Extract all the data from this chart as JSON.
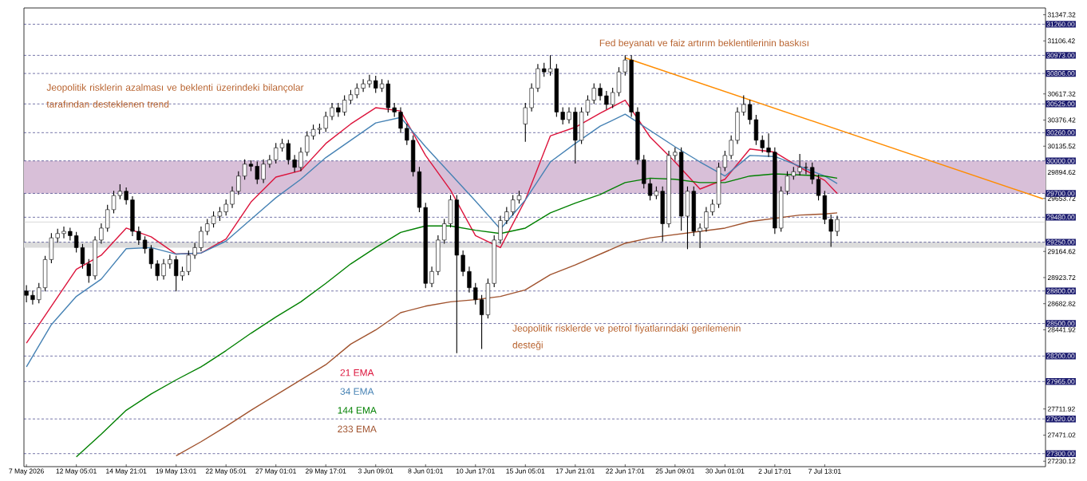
{
  "chart_data": {
    "type": "candlestick",
    "categories": [
      "7 May 2026",
      null,
      null,
      null,
      null,
      null,
      null,
      null,
      "12 May 05:01",
      null,
      null,
      null,
      null,
      null,
      null,
      null,
      "14 May 21:01",
      null,
      null,
      null,
      null,
      null,
      null,
      null,
      "19 May 13:01",
      null,
      null,
      null,
      null,
      null,
      null,
      null,
      "22 May 05:01",
      null,
      null,
      null,
      null,
      null,
      null,
      null,
      "27 May 01:01",
      null,
      null,
      null,
      null,
      null,
      null,
      null,
      "29 May 17:01",
      null,
      null,
      null,
      null,
      null,
      null,
      null,
      "3 Jun 09:01",
      null,
      null,
      null,
      null,
      null,
      null,
      null,
      "8 Jun 01:01",
      null,
      null,
      null,
      null,
      null,
      null,
      null,
      "10 Jun 17:01",
      null,
      null,
      null,
      null,
      null,
      null,
      null,
      "15 Jun 05:01",
      null,
      null,
      null,
      null,
      null,
      null,
      null,
      "17 Jun 21:01",
      null,
      null,
      null,
      null,
      null,
      null,
      null,
      "22 Jun 17:01",
      null,
      null,
      null,
      null,
      null,
      null,
      null,
      "25 Jun 09:01",
      null,
      null,
      null,
      null,
      null,
      null,
      null,
      "30 Jun 01:01",
      null,
      null,
      null,
      null,
      null,
      null,
      null,
      "2 Jul 17:01",
      null,
      null,
      null,
      null,
      null,
      null,
      null,
      "7 Jul 13:01",
      null,
      null,
      null,
      null,
      null,
      null,
      null,
      null,
      null,
      null,
      null,
      null,
      null,
      null,
      null,
      null,
      null,
      null,
      null,
      null,
      null,
      null,
      null,
      null,
      null,
      null,
      null,
      null,
      null,
      null,
      null,
      null,
      null,
      null,
      null
    ],
    "ohlc": [
      [
        28800,
        28850,
        28700,
        28760
      ],
      [
        28760,
        28800,
        28680,
        28720
      ],
      [
        28720,
        28870,
        28690,
        28830
      ],
      [
        28830,
        29120,
        28800,
        29090
      ],
      [
        29090,
        29330,
        29060,
        29290
      ],
      [
        29290,
        29370,
        29250,
        29330
      ],
      [
        29330,
        29390,
        29290,
        29350
      ],
      [
        29350,
        29380,
        29270,
        29310
      ],
      [
        29310,
        29340,
        29160,
        29200
      ],
      [
        29200,
        29230,
        29010,
        29050
      ],
      [
        29050,
        29090,
        28880,
        28940
      ],
      [
        28940,
        29300,
        28910,
        29270
      ],
      [
        29270,
        29420,
        29240,
        29380
      ],
      [
        29380,
        29590,
        29350,
        29550
      ],
      [
        29550,
        29720,
        29520,
        29680
      ],
      [
        29680,
        29780,
        29650,
        29720
      ],
      [
        29720,
        29750,
        29600,
        29640
      ],
      [
        29640,
        29670,
        29310,
        29350
      ],
      [
        29350,
        29390,
        29230,
        29270
      ],
      [
        29270,
        29300,
        29150,
        29190
      ],
      [
        29190,
        29220,
        29010,
        29050
      ],
      [
        29050,
        29080,
        28900,
        28940
      ],
      [
        28940,
        29090,
        28910,
        29050
      ],
      [
        29050,
        29130,
        29010,
        29090
      ],
      [
        29090,
        29120,
        28800,
        28940
      ],
      [
        28940,
        29020,
        28900,
        28980
      ],
      [
        28980,
        29170,
        28950,
        29130
      ],
      [
        29130,
        29240,
        29100,
        29200
      ],
      [
        29200,
        29390,
        29170,
        29350
      ],
      [
        29350,
        29460,
        29320,
        29420
      ],
      [
        29420,
        29530,
        29390,
        29490
      ],
      [
        29490,
        29570,
        29450,
        29530
      ],
      [
        29530,
        29640,
        29500,
        29600
      ],
      [
        29600,
        29760,
        29570,
        29720
      ],
      [
        29720,
        29900,
        29690,
        29860
      ],
      [
        29860,
        30010,
        29830,
        29970
      ],
      [
        29970,
        30000,
        29910,
        29950
      ],
      [
        29950,
        29990,
        29790,
        29830
      ],
      [
        29830,
        30010,
        29800,
        29970
      ],
      [
        29970,
        30050,
        29940,
        30010
      ],
      [
        30010,
        30160,
        29980,
        30120
      ],
      [
        30120,
        30200,
        30090,
        30160
      ],
      [
        30160,
        30190,
        29970,
        30010
      ],
      [
        30010,
        30050,
        29900,
        29940
      ],
      [
        29940,
        30120,
        29910,
        30080
      ],
      [
        30080,
        30270,
        30050,
        30230
      ],
      [
        30230,
        30330,
        30200,
        30290
      ],
      [
        30290,
        30340,
        30250,
        30300
      ],
      [
        30300,
        30450,
        30270,
        30410
      ],
      [
        30410,
        30530,
        30380,
        30490
      ],
      [
        30490,
        30530,
        30410,
        30450
      ],
      [
        30450,
        30600,
        30420,
        30560
      ],
      [
        30560,
        30650,
        30530,
        30610
      ],
      [
        30610,
        30710,
        30580,
        30670
      ],
      [
        30670,
        30750,
        30640,
        30710
      ],
      [
        30710,
        30790,
        30680,
        30740
      ],
      [
        30740,
        30780,
        30630,
        30670
      ],
      [
        30670,
        30750,
        30640,
        30710
      ],
      [
        30710,
        30740,
        30450,
        30490
      ],
      [
        30490,
        30530,
        30410,
        30450
      ],
      [
        30450,
        30490,
        30260,
        30300
      ],
      [
        30300,
        30340,
        30150,
        30190
      ],
      [
        30190,
        30230,
        29860,
        29900
      ],
      [
        29900,
        29940,
        29530,
        29570
      ],
      [
        29570,
        29610,
        28830,
        28870
      ],
      [
        28870,
        29020,
        28840,
        28980
      ],
      [
        28980,
        29310,
        28950,
        29270
      ],
      [
        29270,
        29460,
        29240,
        29420
      ],
      [
        29420,
        29680,
        29390,
        29640
      ],
      [
        29640,
        29680,
        28230,
        29130
      ],
      [
        29130,
        29170,
        28940,
        28980
      ],
      [
        28980,
        29020,
        28790,
        28830
      ],
      [
        28830,
        28870,
        28680,
        28720
      ],
      [
        28720,
        28760,
        28270,
        28580
      ],
      [
        28580,
        28910,
        28550,
        28870
      ],
      [
        28870,
        29310,
        28840,
        29270
      ],
      [
        29270,
        29490,
        29240,
        29450
      ],
      [
        29450,
        29570,
        29420,
        29530
      ],
      [
        29530,
        29680,
        29500,
        29640
      ],
      [
        29640,
        29720,
        29610,
        29680
      ],
      [
        30340,
        30530,
        30180,
        30490
      ],
      [
        30490,
        30710,
        30460,
        30670
      ],
      [
        30670,
        30890,
        30640,
        30850
      ],
      [
        30850,
        30900,
        30780,
        30820
      ],
      [
        30820,
        30970,
        30790,
        30850
      ],
      [
        30850,
        30890,
        30410,
        30450
      ],
      [
        30450,
        30490,
        30340,
        30380
      ],
      [
        30380,
        30490,
        30350,
        30450
      ],
      [
        30450,
        30490,
        29980,
        30190
      ],
      [
        30190,
        30490,
        30160,
        30450
      ],
      [
        30450,
        30600,
        30420,
        30560
      ],
      [
        30560,
        30710,
        30530,
        30670
      ],
      [
        30670,
        30710,
        30560,
        30600
      ],
      [
        30600,
        30640,
        30480,
        30520
      ],
      [
        30520,
        30670,
        30490,
        30630
      ],
      [
        30630,
        30860,
        30600,
        30820
      ],
      [
        30820,
        30970,
        30790,
        30930
      ],
      [
        30930,
        30970,
        30410,
        30450
      ],
      [
        30450,
        30490,
        29970,
        30010
      ],
      [
        30010,
        30050,
        29750,
        29790
      ],
      [
        29790,
        29830,
        29640,
        29680
      ],
      [
        29680,
        29760,
        29650,
        29720
      ],
      [
        29720,
        29760,
        29260,
        29420
      ],
      [
        29420,
        30090,
        29390,
        30050
      ],
      [
        30050,
        30120,
        30010,
        30080
      ],
      [
        30080,
        30120,
        29360,
        29490
      ],
      [
        29490,
        29760,
        29190,
        29720
      ],
      [
        29720,
        29760,
        29310,
        29350
      ],
      [
        29350,
        29420,
        29200,
        29380
      ],
      [
        29380,
        29570,
        29350,
        29530
      ],
      [
        29530,
        29640,
        29500,
        29600
      ],
      [
        29600,
        29980,
        29570,
        29940
      ],
      [
        29940,
        30090,
        29910,
        30050
      ],
      [
        30050,
        30230,
        30020,
        30190
      ],
      [
        30190,
        30490,
        30160,
        30450
      ],
      [
        30450,
        30600,
        30420,
        30520
      ],
      [
        30520,
        30560,
        30340,
        30380
      ],
      [
        30380,
        30420,
        30150,
        30190
      ],
      [
        30190,
        30230,
        30080,
        30120
      ],
      [
        30120,
        30250,
        30040,
        30080
      ],
      [
        30080,
        30120,
        29330,
        29380
      ],
      [
        29380,
        29760,
        29350,
        29720
      ],
      [
        29720,
        29900,
        29690,
        29860
      ],
      [
        29860,
        29940,
        29830,
        29900
      ],
      [
        29900,
        30060,
        29870,
        29940
      ],
      [
        29940,
        29980,
        29880,
        29940
      ],
      [
        29940,
        29980,
        29790,
        29830
      ],
      [
        29830,
        29870,
        29640,
        29680
      ],
      [
        29680,
        29720,
        29420,
        29460
      ],
      [
        29460,
        29500,
        29210,
        29350
      ],
      [
        29350,
        29490,
        29310,
        29460
      ],
      null,
      null,
      null,
      null,
      null,
      null,
      null,
      null,
      null,
      null,
      null,
      null,
      null,
      null,
      null,
      null,
      null,
      null,
      null,
      null,
      null,
      null,
      null,
      null,
      null,
      null,
      null,
      null,
      null,
      null,
      null,
      null,
      null
    ],
    "series": [
      {
        "type": "line",
        "name": "21 EMA",
        "color": "#dc143c",
        "values": [
          28320,
          null,
          null,
          null,
          28660,
          null,
          null,
          null,
          29000,
          null,
          null,
          null,
          29130,
          null,
          null,
          null,
          29380,
          null,
          null,
          null,
          29300,
          null,
          null,
          null,
          29140,
          null,
          null,
          null,
          29150,
          null,
          null,
          null,
          29280,
          null,
          null,
          null,
          29620,
          null,
          null,
          null,
          29850,
          null,
          null,
          null,
          29910,
          null,
          null,
          null,
          30160,
          null,
          null,
          null,
          30340,
          null,
          null,
          null,
          30490,
          null,
          null,
          null,
          30460,
          null,
          null,
          null,
          30050,
          null,
          null,
          null,
          29730,
          null,
          null,
          null,
          29310,
          null,
          null,
          null,
          29200,
          null,
          null,
          null,
          29640,
          null,
          null,
          null,
          30230,
          null,
          null,
          null,
          30310,
          null,
          null,
          null,
          30440,
          null,
          null,
          null,
          30560,
          null,
          null,
          null,
          30220,
          null,
          null,
          null,
          29990,
          null,
          null,
          null,
          29740,
          null,
          null,
          null,
          29830,
          null,
          null,
          null,
          30110,
          null,
          null,
          null,
          30080,
          null,
          null,
          null,
          29940,
          null,
          null,
          null,
          29820,
          null,
          29700,
          null,
          null,
          null,
          null,
          null,
          null,
          null,
          null,
          null,
          null,
          null,
          null,
          null,
          null,
          null,
          null,
          null,
          null,
          null,
          null,
          null,
          null,
          null,
          null,
          null,
          null,
          null,
          null,
          null,
          null,
          null,
          null,
          null
        ]
      },
      {
        "type": "line",
        "name": "34 EMA",
        "color": "#4682b4",
        "values": [
          28100,
          null,
          null,
          null,
          28490,
          null,
          null,
          null,
          28750,
          null,
          null,
          null,
          28910,
          null,
          null,
          null,
          29190,
          null,
          null,
          null,
          29200,
          null,
          null,
          null,
          29140,
          null,
          null,
          null,
          29150,
          null,
          null,
          null,
          29260,
          null,
          null,
          null,
          29460,
          null,
          null,
          null,
          29660,
          null,
          null,
          null,
          29830,
          null,
          null,
          null,
          30030,
          null,
          null,
          null,
          30190,
          null,
          null,
          null,
          30350,
          null,
          null,
          null,
          30400,
          null,
          null,
          null,
          30130,
          null,
          null,
          null,
          29880,
          null,
          null,
          null,
          29630,
          null,
          null,
          null,
          29370,
          null,
          null,
          null,
          29640,
          null,
          null,
          null,
          29990,
          null,
          null,
          null,
          30160,
          null,
          null,
          null,
          30320,
          null,
          null,
          null,
          30430,
          null,
          null,
          null,
          30280,
          null,
          null,
          null,
          30130,
          null,
          null,
          null,
          29990,
          null,
          null,
          null,
          29860,
          null,
          null,
          null,
          30050,
          null,
          null,
          null,
          30040,
          null,
          null,
          null,
          29950,
          null,
          null,
          null,
          29860,
          null,
          29790,
          null,
          null,
          null,
          null,
          null,
          null,
          null,
          null,
          null,
          null,
          null,
          null,
          null,
          null,
          null,
          null,
          null,
          null,
          null,
          null,
          null,
          null,
          null,
          null,
          null,
          null,
          null,
          null,
          null,
          null,
          null,
          null,
          null
        ]
      },
      {
        "type": "line",
        "name": "144 EMA",
        "color": "#008000",
        "values": [
          null,
          null,
          null,
          null,
          null,
          null,
          null,
          null,
          27270,
          null,
          null,
          null,
          27480,
          null,
          null,
          null,
          27700,
          null,
          null,
          null,
          27850,
          null,
          null,
          null,
          27980,
          null,
          null,
          null,
          28100,
          null,
          null,
          null,
          28250,
          null,
          null,
          null,
          28410,
          null,
          null,
          null,
          28560,
          null,
          null,
          null,
          28700,
          null,
          null,
          null,
          28870,
          null,
          null,
          null,
          29050,
          null,
          null,
          null,
          29200,
          null,
          null,
          null,
          29340,
          null,
          null,
          null,
          29400,
          null,
          null,
          null,
          29400,
          null,
          null,
          null,
          29360,
          null,
          null,
          null,
          29330,
          null,
          null,
          null,
          29380,
          null,
          null,
          null,
          29520,
          null,
          null,
          null,
          29610,
          null,
          null,
          null,
          29690,
          null,
          null,
          null,
          29800,
          null,
          null,
          null,
          29840,
          null,
          null,
          null,
          29830,
          null,
          null,
          null,
          29800,
          null,
          null,
          null,
          29800,
          null,
          null,
          null,
          29860,
          null,
          null,
          null,
          29880,
          null,
          null,
          null,
          29870,
          null,
          null,
          null,
          29860,
          null,
          29840,
          null,
          null,
          null,
          null,
          null,
          null,
          null,
          null,
          null,
          null,
          null,
          null,
          null,
          null,
          null,
          null,
          null,
          null,
          null,
          null,
          null,
          null,
          null,
          null,
          null,
          null,
          null,
          null,
          null,
          null,
          null,
          null,
          null
        ]
      },
      {
        "type": "line",
        "name": "233 EMA",
        "color": "#a0522d",
        "values": [
          null,
          null,
          null,
          null,
          null,
          null,
          null,
          null,
          null,
          null,
          null,
          null,
          null,
          null,
          null,
          null,
          null,
          null,
          null,
          null,
          null,
          null,
          null,
          null,
          27280,
          null,
          null,
          null,
          27410,
          null,
          null,
          null,
          27550,
          null,
          null,
          null,
          27700,
          null,
          null,
          null,
          27840,
          null,
          null,
          null,
          27980,
          null,
          null,
          null,
          28120,
          null,
          null,
          null,
          28310,
          null,
          null,
          null,
          28440,
          null,
          null,
          null,
          28600,
          null,
          null,
          null,
          28660,
          null,
          null,
          null,
          28700,
          null,
          null,
          null,
          28720,
          null,
          null,
          null,
          28750,
          null,
          null,
          null,
          28810,
          null,
          null,
          null,
          28950,
          null,
          null,
          null,
          29040,
          null,
          null,
          null,
          29140,
          null,
          null,
          null,
          29240,
          null,
          null,
          null,
          29290,
          null,
          null,
          null,
          29320,
          null,
          null,
          null,
          29350,
          null,
          null,
          null,
          29380,
          null,
          null,
          null,
          29440,
          null,
          null,
          null,
          29470,
          null,
          null,
          null,
          29500,
          null,
          null,
          null,
          29510,
          null,
          29520,
          null,
          null,
          null,
          null,
          null,
          null,
          null,
          null,
          null,
          null,
          null,
          null,
          null,
          null,
          null,
          null,
          null,
          null,
          null,
          null,
          null,
          null,
          null,
          null,
          null,
          null,
          null,
          null,
          null,
          null,
          null,
          null,
          null
        ]
      },
      {
        "type": "line",
        "color": "#ff8c00",
        "values": [
          null,
          null,
          null,
          null,
          null,
          null,
          null,
          null,
          null,
          null,
          null,
          null,
          null,
          null,
          null,
          null,
          null,
          null,
          null,
          null,
          null,
          null,
          null,
          null,
          null,
          null,
          null,
          null,
          null,
          null,
          null,
          null,
          null,
          null,
          null,
          null,
          null,
          null,
          null,
          null,
          null,
          null,
          null,
          null,
          null,
          null,
          null,
          null,
          null,
          null,
          null,
          null,
          null,
          null,
          null,
          null,
          null,
          null,
          null,
          null,
          null,
          null,
          null,
          null,
          null,
          null,
          null,
          null,
          null,
          null,
          null,
          null,
          null,
          null,
          null,
          null,
          null,
          null,
          null,
          null,
          null,
          null,
          null,
          null,
          null,
          null,
          null,
          null,
          null,
          null,
          null,
          null,
          null,
          null,
          null,
          null,
          30950,
          null,
          null,
          null,
          null,
          null,
          null,
          null,
          null,
          null,
          null,
          null,
          null,
          null,
          null,
          null,
          null,
          null,
          null,
          null,
          null,
          null,
          null,
          null,
          null,
          null,
          null,
          null,
          null,
          null,
          null,
          null,
          null,
          null,
          null,
          null,
          null,
          null,
          null,
          null,
          null,
          null,
          null,
          null,
          null,
          null,
          null,
          null,
          null,
          null,
          null,
          null,
          null,
          null,
          null,
          null,
          null,
          null,
          null,
          null,
          null,
          null,
          null,
          null,
          null,
          null,
          null,
          29650
        ]
      }
    ],
    "ylim": [
      27180,
      31410
    ],
    "yticks": [
      31347.32,
      31106.42,
      30617.32,
      30376.42,
      30135.52,
      29894.62,
      29653.72,
      29164.62,
      28923.72,
      28682.82,
      28441.92,
      27711.92,
      27471.02,
      27230.12
    ],
    "ref_lines": [
      {
        "axis": "y",
        "value": 31260,
        "label": "31260.00",
        "color": "#1a1a6e",
        "line_style": "dashed"
      },
      {
        "axis": "y",
        "value": 30973,
        "label": "30973.00",
        "color": "#1a1a6e",
        "line_style": "dashed"
      },
      {
        "axis": "y",
        "value": 30806,
        "label": "30806.00",
        "color": "#1a1a6e",
        "line_style": "dashed"
      },
      {
        "axis": "y",
        "value": 30525,
        "label": "30525.00",
        "color": "#1a1a6e",
        "line_style": "dashed"
      },
      {
        "axis": "y",
        "value": 30260,
        "label": "30260.00",
        "color": "#1a1a6e",
        "line_style": "dashed"
      },
      {
        "axis": "y",
        "value": 30000,
        "label": "30000.00",
        "color": "#1a1a6e",
        "line_style": "dashed"
      },
      {
        "axis": "y",
        "value": 29700,
        "label": "29700.00",
        "color": "#1a1a6e",
        "line_style": "dashed"
      },
      {
        "axis": "y",
        "value": 29480,
        "label": "29480.00",
        "color": "#1a1a6e",
        "line_style": "dashed"
      },
      {
        "axis": "y",
        "value": 29436,
        "color": "#c0c0c0",
        "line_style": "solid"
      },
      {
        "axis": "y",
        "value": 29250,
        "label": "29250.00",
        "color": "#1a1a6e",
        "line_style": "dashed"
      },
      {
        "axis": "y",
        "value": 28800,
        "label": "28800.00",
        "color": "#1a1a6e",
        "line_style": "dashed"
      },
      {
        "axis": "y",
        "value": 28500,
        "label": "28500.00",
        "color": "#1a1a6e",
        "line_style": "dashed"
      },
      {
        "axis": "y",
        "value": 28200,
        "label": "28200.00",
        "color": "#1a1a6e",
        "line_style": "dashed"
      },
      {
        "axis": "y",
        "value": 27965,
        "label": "27965.00",
        "color": "#1a1a6e",
        "line_style": "dashed"
      },
      {
        "axis": "y",
        "value": 27620,
        "label": "27620.00",
        "color": "#1a1a6e",
        "line_style": "dashed"
      },
      {
        "axis": "y",
        "value": 27300,
        "label": "27300.00",
        "color": "#1a1a6e",
        "line_style": "dashed"
      }
    ],
    "bands": [
      {
        "axis": "y",
        "from": 29700,
        "to": 30000,
        "color": "#d8bfd8"
      },
      {
        "axis": "y",
        "from": 29200,
        "to": 29250,
        "color": "#dcdcdc"
      }
    ],
    "annotations": [
      "Jeopolitik risklerin azalması ve beklenti üzerindeki bilançolar tarafından desteklenen trend",
      "Fed beyanatı ve faiz artırım beklentilerinin baskısı",
      "Jeopolitik risklerde ve petrol fiyatlarındaki gerilemenin desteği"
    ],
    "legend": "bottom"
  }
}
